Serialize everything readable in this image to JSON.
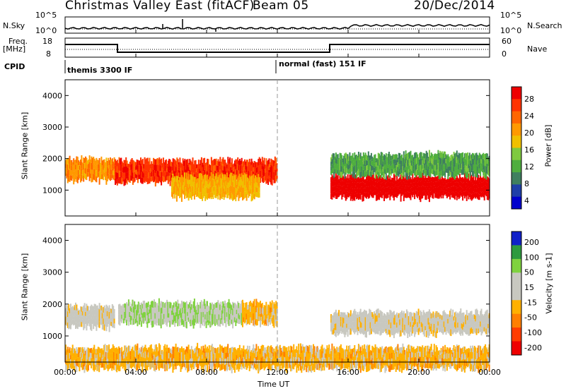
{
  "header": {
    "title": "Christmas Valley East (fitACF)",
    "beam": "Beam 05",
    "date": "20/Dec/2014"
  },
  "sky_panel": {
    "left_label": "N.Sky",
    "left_ticks": [
      "10^5",
      "10^0"
    ],
    "right_label": "N.Search",
    "right_ticks": [
      "10^5",
      "10^0"
    ]
  },
  "freq_panel": {
    "left_label_1": "Freq.",
    "left_label_2": "[MHz]",
    "left_ticks": [
      "18",
      "8"
    ],
    "right_label": "Nave",
    "right_ticks": [
      "60",
      "0"
    ]
  },
  "cpid": {
    "label": "CPID",
    "program_1": "themis 3300 IF",
    "program_2": "normal (fast) 151 IF"
  },
  "x_axis": {
    "label": "Time UT",
    "ticks": [
      "00:00",
      "04:00",
      "08:00",
      "12:00",
      "16:00",
      "20:00",
      "00:00"
    ]
  },
  "colors": {
    "power": [
      "#0000cc",
      "#1f3fa8",
      "#3f7f5f",
      "#4fae3f",
      "#7fc93f",
      "#f0c000",
      "#ff9900",
      "#ff6600",
      "#ff3300",
      "#ee0000"
    ],
    "velocity": [
      "#1020c8",
      "#2e9a3e",
      "#7fd23f",
      "#c8c8c0",
      "#c8c8c0",
      "#ffb000",
      "#ff7f00",
      "#ff3c00",
      "#ee0000"
    ]
  },
  "chart_data": [
    {
      "type": "heatmap",
      "name": "power",
      "ylabel": "Slant Range [km]",
      "ylim": [
        180,
        4500
      ],
      "yticks": [
        1000,
        2000,
        3000,
        4000
      ],
      "xlim_hours": [
        0,
        24
      ],
      "colorbar": {
        "label": "Power [dB]",
        "ticks": [
          "28",
          "24",
          "20",
          "16",
          "12",
          "8",
          "4"
        ],
        "range": [
          0,
          30
        ]
      },
      "features": [
        {
          "t_start": 0.0,
          "t_end": 2.8,
          "range_center": 1650,
          "value": 20
        },
        {
          "t_start": 2.8,
          "t_end": 12.0,
          "range_center": 1600,
          "value": 26
        },
        {
          "t_start": 6.0,
          "t_end": 11.0,
          "range_center": 1100,
          "value": 18
        },
        {
          "t_start": 15.0,
          "t_end": 24.0,
          "range_center": 1100,
          "value": 30
        },
        {
          "t_start": 15.0,
          "t_end": 24.0,
          "range_center": 1800,
          "value": 10
        }
      ]
    },
    {
      "type": "heatmap",
      "name": "velocity",
      "ylabel": "Slant Range [km]",
      "ylim": [
        180,
        4500
      ],
      "yticks": [
        1000,
        2000,
        3000,
        4000
      ],
      "xlim_hours": [
        0,
        24
      ],
      "colorbar": {
        "label": "Velocity [m s-1]",
        "ticks": [
          "200",
          "100",
          "50",
          "15",
          "-15",
          "-50",
          "-100",
          "-200"
        ],
        "range": [
          -200,
          200
        ]
      },
      "features": [
        {
          "t_start": 0.0,
          "t_end": 2.8,
          "range_center": 1600,
          "value": 0
        },
        {
          "t_start": 3.0,
          "t_end": 10.0,
          "range_center": 1700,
          "value": 60
        },
        {
          "t_start": 10.0,
          "t_end": 12.0,
          "range_center": 1700,
          "value": -40
        },
        {
          "t_start": 15.0,
          "t_end": 24.0,
          "range_center": 1400,
          "value": 0
        },
        {
          "t_start": 0.0,
          "t_end": 24.0,
          "range_center": 300,
          "value": -40
        }
      ]
    }
  ]
}
